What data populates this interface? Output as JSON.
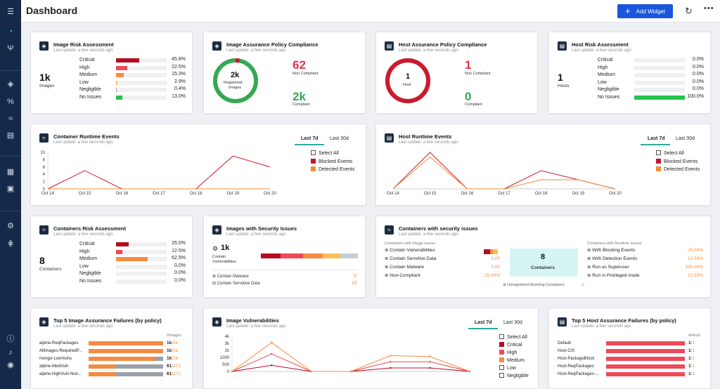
{
  "app": {
    "title": "Dashboard",
    "add_widget": "Add Widget"
  },
  "colors": {
    "critical": "#b50c22",
    "high": "#ee4a58",
    "medium": "#f58b42",
    "low": "#f7c153",
    "negligible": "#9aa1a9",
    "ok": "#21c44d",
    "brand": "#1a56db",
    "sidebar": "#152a4a"
  },
  "sidebar": {
    "icons": [
      "menu-icon",
      "dashboard-icon",
      "policies-icon",
      "images-icon",
      "vulnerabilities-icon",
      "runtime-icon",
      "hosts-icon",
      "reports-icon",
      "audit-icon",
      "settings-icon",
      "integrations-icon",
      "help-icon",
      "notifications-icon",
      "user-icon"
    ]
  },
  "cards": {
    "image_risk": {
      "title": "Image Risk Assessment",
      "sub": "Last update: a few seconds ago",
      "count": "1k",
      "count_label": "Images",
      "rows": [
        {
          "label": "Critical",
          "pct": "45.8%",
          "value": 45.8,
          "color": "#b50c22"
        },
        {
          "label": "High",
          "pct": "22.5%",
          "value": 22.5,
          "color": "#ee4a58"
        },
        {
          "label": "Medium",
          "pct": "15.3%",
          "value": 15.3,
          "color": "#f58b42"
        },
        {
          "label": "Low",
          "pct": "2.9%",
          "value": 2.9,
          "color": "#f7c153"
        },
        {
          "label": "Negligible",
          "pct": "0.4%",
          "value": 0.4,
          "color": "#9aa1a9"
        },
        {
          "label": "No Issues",
          "pct": "13.0%",
          "value": 13.0,
          "color": "#21c44d"
        }
      ]
    },
    "image_assurance": {
      "title": "Image Assurance Policy Compliance",
      "sub": "Last update: a few seconds ago",
      "center_value": "2k",
      "center_label1": "Registered",
      "center_label2": "Images",
      "non_compliant": "62",
      "non_compliant_label": "Non Compliant",
      "compliant": "2k",
      "compliant_label": "Compliant",
      "noncompliant_share": 0.03
    },
    "host_assurance": {
      "title": "Host Assurance Policy Compliance",
      "sub": "Last update: a few seconds ago",
      "center_value": "1",
      "center_label": "Host",
      "non_compliant": "1",
      "non_compliant_label": "Non Compliant",
      "compliant": "0",
      "compliant_label": "Compliant",
      "noncompliant_share": 1.0
    },
    "host_risk": {
      "title": "Host Risk Assessment",
      "sub": "Last update: a few seconds ago",
      "count": "1",
      "count_label": "Hosts",
      "rows": [
        {
          "label": "Critical",
          "pct": "0.0%",
          "value": 0,
          "color": "#b50c22"
        },
        {
          "label": "High",
          "pct": "0.0%",
          "value": 0,
          "color": "#ee4a58"
        },
        {
          "label": "Medium",
          "pct": "0.0%",
          "value": 0,
          "color": "#f58b42"
        },
        {
          "label": "Low",
          "pct": "0.0%",
          "value": 0,
          "color": "#f7c153"
        },
        {
          "label": "Negligible",
          "pct": "0.0%",
          "value": 0,
          "color": "#9aa1a9"
        },
        {
          "label": "No Issues",
          "pct": "100.0%",
          "value": 100,
          "color": "#21c44d"
        }
      ]
    },
    "container_runtime": {
      "title": "Container Runtime Events",
      "sub": "Last update: a few seconds ago",
      "tab1": "Last 7d",
      "tab2": "Last 30d",
      "select_all": "Select All",
      "blocked": "Blocked Events",
      "detected": "Detected Events"
    },
    "host_runtime": {
      "title": "Host Runtime Events",
      "sub": "Last update: a few seconds ago",
      "tab1": "Last 7d",
      "tab2": "Last 30d",
      "select_all": "Select All",
      "blocked": "Blocked Events",
      "detected": "Detected Events"
    },
    "containers_risk": {
      "title": "Containers Risk Assessment",
      "sub": "Last update: a few seconds ago",
      "count": "8",
      "count_label": "Containers",
      "rows": [
        {
          "label": "Critical",
          "pct": "25.0%",
          "value": 25,
          "color": "#b50c22"
        },
        {
          "label": "High",
          "pct": "12.5%",
          "value": 12.5,
          "color": "#ee4a58"
        },
        {
          "label": "Medium",
          "pct": "62.5%",
          "value": 62.5,
          "color": "#f58b42"
        },
        {
          "label": "Low",
          "pct": "0.0%",
          "value": 0,
          "color": "#f7c153"
        },
        {
          "label": "Negligible",
          "pct": "0.0%",
          "value": 0,
          "color": "#9aa1a9"
        },
        {
          "label": "No Issues",
          "pct": "0.0%",
          "value": 0,
          "color": "#21c44d"
        }
      ]
    },
    "images_security": {
      "title": "Images with Security Issues",
      "sub": "Last update: a few seconds ago",
      "count": "1k",
      "count_label1": "Contain",
      "count_label2": "Vulnerabilities",
      "malware_label": "Contain Malware",
      "malware_value": "0",
      "sensitive_label": "Contain Sensitive Data",
      "sensitive_value": "10"
    },
    "containers_security": {
      "title": "Containers with security issues",
      "sub": "Last update: a few seconds ago",
      "left_header": "Containers with Image Issues",
      "right_header": "Containers with Runtime Issues",
      "left": [
        {
          "label": "Contain Vulnerabilities",
          "value": ""
        },
        {
          "label": "Contain Sensitive Data",
          "value": "0.00"
        },
        {
          "label": "Contain Malware",
          "value": "0.00"
        },
        {
          "label": "Non-Compliant",
          "value": "25.00%"
        }
      ],
      "center_value": "8",
      "center_label": "Containers",
      "unregistered": "Unregistered Running Containers",
      "unregistered_value": "0",
      "right": [
        {
          "label": "With Blocking Events",
          "value": "25.00%"
        },
        {
          "label": "With Detection Events",
          "value": "12.50%"
        },
        {
          "label": "Run as Superuser",
          "value": "100.00%"
        },
        {
          "label": "Run in Privileged mode",
          "value": "12.50%"
        }
      ]
    },
    "top5_image": {
      "title": "Top 5 Image Assurance Failures (by policy)",
      "sub": "Last update: a few seconds ago",
      "col_header": "#Images",
      "rows": [
        {
          "label": "alpine-ReqPackages",
          "value": "1k",
          "total": "/1k",
          "share": 1.0
        },
        {
          "label": "AllImages-RequiredP...",
          "value": "1k",
          "total": "/1k",
          "share": 1.0
        },
        {
          "label": "mongo-LowVulns",
          "value": "1k",
          "total": "/1k",
          "share": 0.9
        },
        {
          "label": "alpine-MedVuln",
          "value": "61",
          "total": "/171",
          "share": 0.36
        },
        {
          "label": "alpine-HighVuln-Non...",
          "value": "61",
          "total": "/171",
          "share": 0.36
        }
      ]
    },
    "image_vulns": {
      "title": "Image Vulnerabilities",
      "sub": "Last update: a few seconds ago",
      "tab1": "Last 7d",
      "tab2": "Last 30d",
      "select_all": "Select All",
      "critical": "Critical",
      "high": "High",
      "medium": "Medium",
      "low": "Low",
      "negligible": "Negligible"
    },
    "top5_host": {
      "title": "Top 5 Host Assurance Failures (by policy)",
      "sub": "Last update: a few seconds ago",
      "col_header": "#Hosts",
      "rows": [
        {
          "label": "Default",
          "value": "1",
          "total": "/1"
        },
        {
          "label": "Host-CIS",
          "value": "1",
          "total": "/1"
        },
        {
          "label": "Host-PackageBlock",
          "value": "1",
          "total": "/1"
        },
        {
          "label": "Host-ReqPackages",
          "value": "1",
          "total": "/1"
        },
        {
          "label": "Host-ReqPackages-...",
          "value": "1",
          "total": "/1"
        }
      ]
    }
  },
  "chart_data": [
    {
      "type": "line",
      "title": "Container Runtime Events",
      "categories": [
        "Oct 14",
        "Oct 15",
        "Oct 16",
        "Oct 17",
        "Oct 18",
        "Oct 19",
        "Oct 20"
      ],
      "ylim": [
        0,
        10
      ],
      "yticks": [
        0,
        2,
        4,
        6,
        8,
        10
      ],
      "series": [
        {
          "name": "Blocked Events",
          "color": "#d0182e",
          "values": [
            0,
            5,
            0,
            0,
            0,
            9,
            6
          ]
        },
        {
          "name": "Detected Events",
          "color": "#f28c38",
          "values": [
            0,
            0,
            0,
            0,
            0,
            0,
            0
          ]
        }
      ]
    },
    {
      "type": "line",
      "title": "Host Runtime Events",
      "categories": [
        "Oct 14",
        "Oct 15",
        "Oct 16",
        "Oct 17",
        "Oct 18",
        "Oct 19",
        "Oct 20"
      ],
      "ylim": [
        0,
        8
      ],
      "series": [
        {
          "name": "Blocked Events",
          "color": "#d0182e",
          "values": [
            0,
            8,
            0,
            0,
            4,
            2,
            0
          ]
        },
        {
          "name": "Detected Events",
          "color": "#f28c38",
          "values": [
            0,
            7,
            0,
            0,
            2,
            2,
            0
          ]
        }
      ]
    },
    {
      "type": "line",
      "title": "Image Vulnerabilities",
      "categories": [
        "",
        "",
        "",
        "",
        "",
        "",
        ""
      ],
      "ylim": [
        0,
        4000
      ],
      "yticks": [
        "0",
        "500",
        "1000",
        "2k",
        "3k",
        "4k"
      ],
      "series": [
        {
          "name": "Critical",
          "color": "#b50c22",
          "values": [
            0,
            700,
            0,
            0,
            400,
            400,
            0
          ]
        },
        {
          "name": "High",
          "color": "#ee4a58",
          "values": [
            0,
            2000,
            0,
            0,
            1100,
            1100,
            0
          ]
        },
        {
          "name": "Medium",
          "color": "#f58b42",
          "values": [
            0,
            3300,
            0,
            0,
            1800,
            1700,
            0
          ]
        }
      ]
    }
  ]
}
